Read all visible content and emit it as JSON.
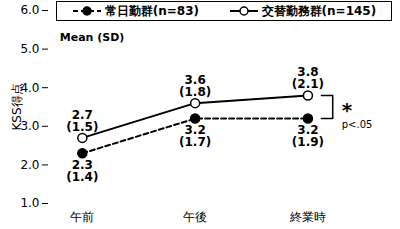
{
  "chart_data": {
    "type": "line",
    "categories": [
      "午前",
      "午後",
      "終業時"
    ],
    "series": [
      {
        "name": "常日勤群(n=83)",
        "color": "#000000",
        "marker": "filled_circle",
        "line_style": "dashed",
        "values": [
          2.3,
          3.2,
          3.2
        ],
        "sd_labels": [
          "(1.4)",
          "(1.7)",
          "(1.9)"
        ]
      },
      {
        "name": "交替勤務群(n=145)",
        "color": "#000000",
        "marker": "open_circle",
        "line_style": "solid",
        "values": [
          2.7,
          3.6,
          3.8
        ],
        "sd_labels": [
          "(1.5)",
          "(1.8)",
          "(2.1)"
        ]
      }
    ],
    "y_label": "KSS得点",
    "ylim": [
      1,
      6
    ],
    "yticks": [
      1,
      2,
      3,
      4,
      5,
      6
    ],
    "grid": false,
    "data_labels": true,
    "legend": "top",
    "note": "Mean (SD)",
    "significance": "*",
    "p_label": "p<.05"
  }
}
